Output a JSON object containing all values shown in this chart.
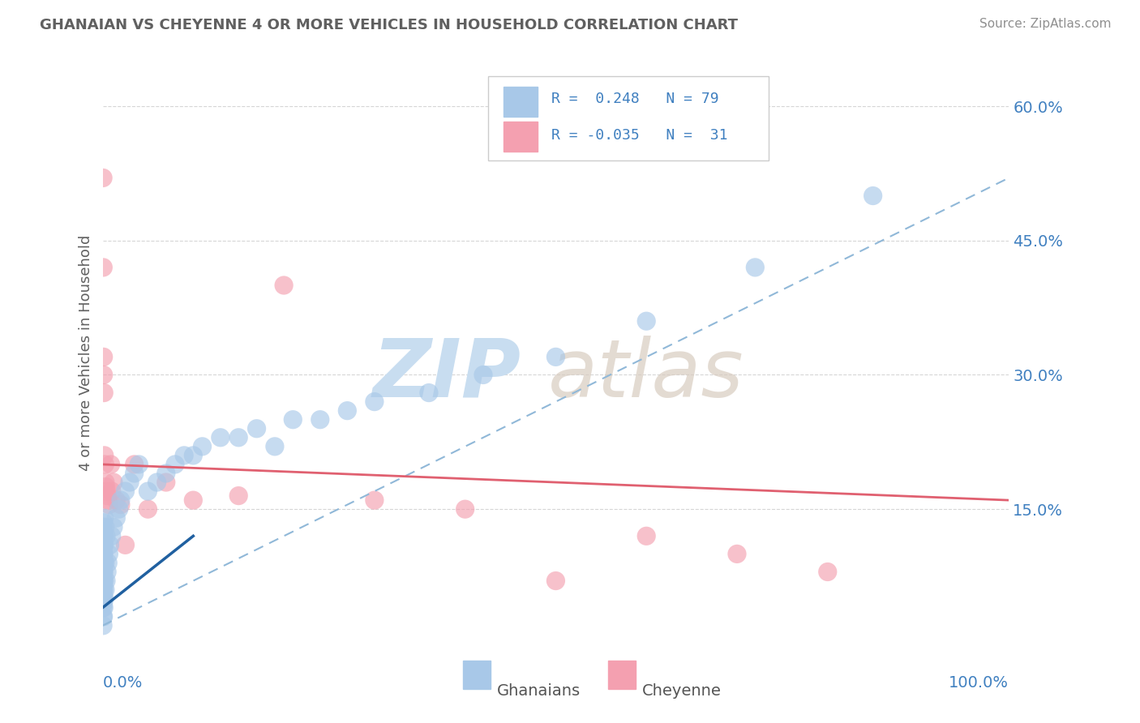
{
  "title": "GHANAIAN VS CHEYENNE 4 OR MORE VEHICLES IN HOUSEHOLD CORRELATION CHART",
  "source": "Source: ZipAtlas.com",
  "xlabel_ghanaian": "Ghanaians",
  "xlabel_cheyenne": "Cheyenne",
  "ylabel": "4 or more Vehicles in Household",
  "xlim": [
    0.0,
    100.0
  ],
  "ylim": [
    0.0,
    65.0
  ],
  "xticks": [
    0.0,
    20.0,
    40.0,
    60.0,
    80.0,
    100.0
  ],
  "ytick_positions": [
    0,
    15,
    30,
    45,
    60
  ],
  "ytick_labels": [
    "",
    "15.0%",
    "30.0%",
    "45.0%",
    "60.0%"
  ],
  "legend_r1": "R =  0.248",
  "legend_n1": "N = 79",
  "legend_r2": "R = -0.035",
  "legend_n2": "N =  31",
  "blue_scatter_color": "#a8c8e8",
  "pink_scatter_color": "#f4a0b0",
  "blue_line_color": "#2060a0",
  "pink_line_color": "#e06070",
  "dashed_line_color": "#90b8d8",
  "watermark_zip_color": "#c8ddf0",
  "watermark_atlas_color": "#d8ccc0",
  "background_color": "#ffffff",
  "grid_color": "#cccccc",
  "title_color": "#606060",
  "source_color": "#909090",
  "ylabel_color": "#606060",
  "axis_label_color": "#4080c0",
  "legend_text_color": "#4080c0",
  "ghanaian_x": [
    0.05,
    0.05,
    0.05,
    0.05,
    0.05,
    0.05,
    0.05,
    0.05,
    0.05,
    0.05,
    0.05,
    0.05,
    0.05,
    0.05,
    0.05,
    0.05,
    0.05,
    0.05,
    0.05,
    0.05,
    0.1,
    0.1,
    0.1,
    0.1,
    0.1,
    0.1,
    0.1,
    0.1,
    0.1,
    0.1,
    0.15,
    0.15,
    0.15,
    0.15,
    0.15,
    0.2,
    0.2,
    0.2,
    0.2,
    0.2,
    0.3,
    0.3,
    0.3,
    0.4,
    0.4,
    0.5,
    0.6,
    0.7,
    0.8,
    1.0,
    1.2,
    1.5,
    1.8,
    2.0,
    2.5,
    3.0,
    3.5,
    4.0,
    5.0,
    6.0,
    7.0,
    8.0,
    9.0,
    10.0,
    11.0,
    13.0,
    15.0,
    17.0,
    19.0,
    21.0,
    24.0,
    27.0,
    30.0,
    36.0,
    42.0,
    50.0,
    60.0,
    72.0,
    85.0
  ],
  "ghanaian_y": [
    2.0,
    3.0,
    4.0,
    5.0,
    5.5,
    6.0,
    6.5,
    7.0,
    7.5,
    8.0,
    8.5,
    9.0,
    9.5,
    10.0,
    10.5,
    11.0,
    11.5,
    12.0,
    12.5,
    13.0,
    3.0,
    4.5,
    5.5,
    7.0,
    8.0,
    9.0,
    10.0,
    11.0,
    12.0,
    13.5,
    4.0,
    6.0,
    8.0,
    10.0,
    12.0,
    5.0,
    7.0,
    9.0,
    11.0,
    14.0,
    6.0,
    9.0,
    13.0,
    7.0,
    12.0,
    8.0,
    9.0,
    10.0,
    11.0,
    12.0,
    13.0,
    14.0,
    15.0,
    16.0,
    17.0,
    18.0,
    19.0,
    20.0,
    17.0,
    18.0,
    19.0,
    20.0,
    21.0,
    21.0,
    22.0,
    23.0,
    23.0,
    24.0,
    22.0,
    25.0,
    25.0,
    26.0,
    27.0,
    28.0,
    30.0,
    32.0,
    36.0,
    42.0,
    50.0
  ],
  "cheyenne_x": [
    0.05,
    0.07,
    0.1,
    0.1,
    0.15,
    0.2,
    0.25,
    0.3,
    0.35,
    0.4,
    0.5,
    0.6,
    0.7,
    0.9,
    1.0,
    1.2,
    1.5,
    2.0,
    2.5,
    3.5,
    5.0,
    7.0,
    10.0,
    15.0,
    20.0,
    30.0,
    40.0,
    50.0,
    60.0,
    70.0,
    80.0
  ],
  "cheyenne_y": [
    52.0,
    42.0,
    32.0,
    30.0,
    28.0,
    21.0,
    20.0,
    18.0,
    17.5,
    17.0,
    16.5,
    16.0,
    15.5,
    20.0,
    17.0,
    18.0,
    16.0,
    15.5,
    11.0,
    20.0,
    15.0,
    18.0,
    16.0,
    16.5,
    40.0,
    16.0,
    15.0,
    7.0,
    12.0,
    10.0,
    8.0
  ],
  "blue_solid_line_x": [
    0.0,
    10.0
  ],
  "blue_solid_line_y": [
    4.0,
    12.0
  ],
  "pink_solid_line_x": [
    0.0,
    100.0
  ],
  "pink_solid_line_y": [
    20.0,
    16.0
  ],
  "dashed_line_x": [
    0.0,
    100.0
  ],
  "dashed_line_y": [
    2.0,
    52.0
  ]
}
